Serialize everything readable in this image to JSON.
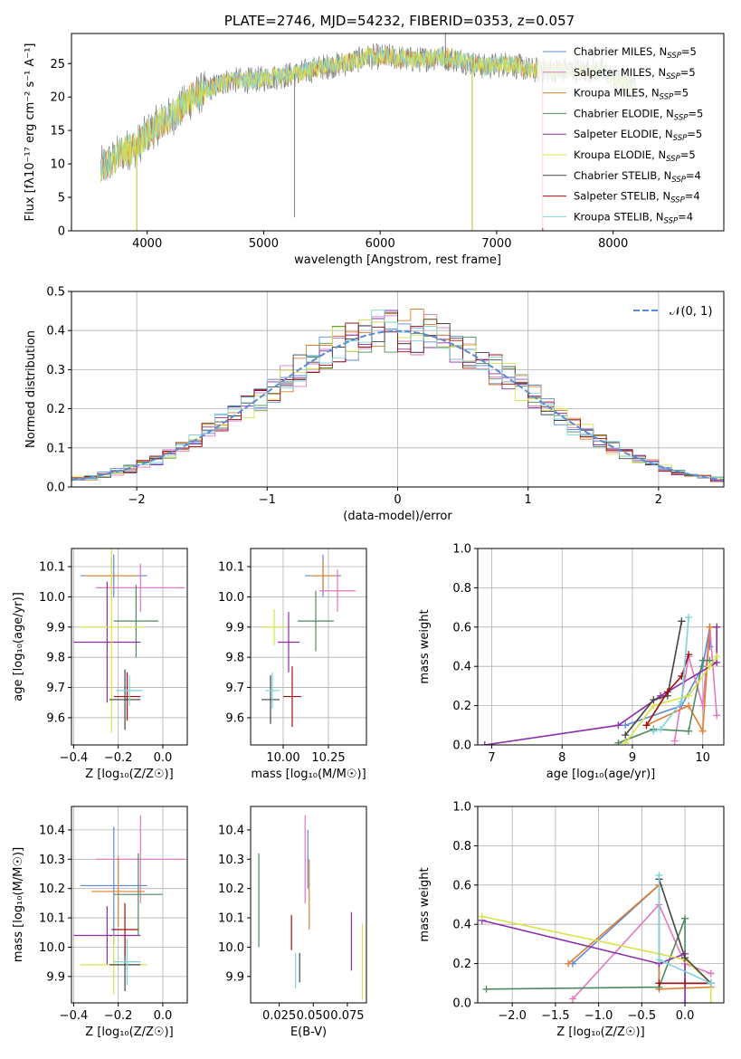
{
  "chart_data": [
    {
      "id": "spectrum",
      "type": "line",
      "title": "PLATE=2746, MJD=54232, FIBERID=0353, z=0.057",
      "xlabel": "wavelength [Angstrom, rest frame]",
      "ylabel": "Flux [fλ10⁻¹⁷ erg cm⁻² s⁻¹ A⁻¹]",
      "xlim": [
        3350,
        8950
      ],
      "ylim": [
        0,
        29.5
      ],
      "xticks": [
        4000,
        5000,
        6000,
        7000,
        8000
      ],
      "yticks": [
        0,
        5,
        10,
        15,
        20,
        25
      ],
      "x_range": [
        3600,
        8200
      ],
      "data_color": "#808080",
      "continuum": {
        "x": [
          3600,
          3700,
          3800,
          3900,
          4000,
          4100,
          4200,
          4300,
          4400,
          4500,
          4700,
          4900,
          5100,
          5300,
          5500,
          5700,
          5900,
          6100,
          6300,
          6500,
          6700,
          6900,
          7100,
          7300,
          7500,
          7700,
          7900,
          8100,
          8200
        ],
        "y": [
          9.5,
          10.5,
          12,
          12.5,
          14.5,
          16,
          17,
          18.5,
          20,
          21,
          22.5,
          22.5,
          23,
          23.5,
          24.5,
          25,
          26,
          26,
          25.5,
          26,
          25.5,
          24.5,
          25,
          24,
          24,
          24,
          24,
          22,
          21
        ]
      },
      "spikes": [
        {
          "x": 3910,
          "y": 0,
          "color": "#bcbd22"
        },
        {
          "x": 5265,
          "y": 2,
          "color": "#808080"
        },
        {
          "x": 6560,
          "y": 29.5,
          "color": "#808080"
        },
        {
          "x": 6790,
          "y": 0,
          "color": "#bcbd22"
        },
        {
          "x": 7395,
          "y": 0,
          "color": "#d62728"
        }
      ],
      "legend_position": "right",
      "legend": [
        {
          "label": "Chabrier MILES, N",
          "sub": "SSP",
          "suffix": "=5",
          "color": "#5b8bd6"
        },
        {
          "label": "Salpeter MILES, N",
          "sub": "SSP",
          "suffix": "=5",
          "color": "#e377c2"
        },
        {
          "label": "Kroupa MILES, N",
          "sub": "SSP",
          "suffix": "=5",
          "color": "#e07f30"
        },
        {
          "label": "Chabrier ELODIE, N",
          "sub": "SSP",
          "suffix": "=5",
          "color": "#4e8a5b"
        },
        {
          "label": "Salpeter ELODIE, N",
          "sub": "SSP",
          "suffix": "=5",
          "color": "#8b2fa8"
        },
        {
          "label": "Kroupa ELODIE, N",
          "sub": "SSP",
          "suffix": "=5",
          "color": "#d8e34a"
        },
        {
          "label": "Chabrier STELIB, N",
          "sub": "SSP",
          "suffix": "=4",
          "color": "#444444"
        },
        {
          "label": "Salpeter STELIB, N",
          "sub": "SSP",
          "suffix": "=4",
          "color": "#a01010"
        },
        {
          "label": "Kroupa STELIB, N",
          "sub": "SSP",
          "suffix": "=4",
          "color": "#7fd3dc"
        }
      ]
    },
    {
      "id": "residuals",
      "type": "line",
      "xlabel": "(data-model)/error",
      "ylabel": "Normed distribution",
      "xlim": [
        -2.5,
        2.5
      ],
      "ylim": [
        0,
        0.5
      ],
      "xticks": [
        -2,
        -1,
        0,
        1,
        2
      ],
      "yticks": [
        0.0,
        0.1,
        0.2,
        0.3,
        0.4,
        0.5
      ],
      "grid": true,
      "legend_position": "top-right",
      "gaussian_label": "𝒩(0, 1)",
      "gaussian_color": "#5b8bd6"
    },
    {
      "id": "age-vs-Z",
      "type": "scatter",
      "xlabel": "Z [log₁₀(Z/Z☉)]",
      "ylabel": "age  [log₁₀(age/yr)]",
      "xlim": [
        -0.41,
        0.11
      ],
      "ylim": [
        9.51,
        10.16
      ],
      "xticks": [
        -0.4,
        -0.2,
        0.0
      ],
      "yticks": [
        9.6,
        9.7,
        9.8,
        9.9,
        10.0,
        10.1
      ],
      "grid": true,
      "points": [
        {
          "x": -0.22,
          "y": 10.07,
          "xerr": 0.15,
          "yerr": 0.07,
          "color": "#5b8bd6"
        },
        {
          "x": -0.1,
          "y": 10.03,
          "xerr": 0.2,
          "yerr": 0.08,
          "color": "#e377c2"
        },
        {
          "x": -0.23,
          "y": 10.07,
          "xerr": 0.12,
          "yerr": 0.06,
          "color": "#e07f30"
        },
        {
          "x": -0.12,
          "y": 9.92,
          "xerr": 0.1,
          "yerr": 0.12,
          "color": "#4e8a5b"
        },
        {
          "x": -0.25,
          "y": 9.85,
          "xerr": 0.15,
          "yerr": 0.2,
          "color": "#8b2fa8"
        },
        {
          "x": -0.23,
          "y": 9.9,
          "xerr": 0.15,
          "yerr": 0.35,
          "color": "#d8e34a"
        },
        {
          "x": -0.17,
          "y": 9.66,
          "xerr": 0.07,
          "yerr": 0.1,
          "color": "#444444"
        },
        {
          "x": -0.16,
          "y": 9.67,
          "xerr": 0.06,
          "yerr": 0.08,
          "color": "#a01010"
        },
        {
          "x": -0.15,
          "y": 9.69,
          "xerr": 0.06,
          "yerr": 0.05,
          "color": "#7fd3dc"
        }
      ]
    },
    {
      "id": "age-vs-mass",
      "type": "scatter",
      "xlabel": "mass [log₁₀(M/M☉)]",
      "ylabel": "",
      "xlim": [
        9.82,
        10.46
      ],
      "ylim": [
        9.51,
        10.16
      ],
      "xticks": [
        10.0,
        10.25
      ],
      "yticks": [
        9.6,
        9.7,
        9.8,
        9.9,
        10.0,
        10.1
      ],
      "grid": true,
      "points": [
        {
          "x": 10.22,
          "y": 10.07,
          "xerr": 0.1,
          "yerr": 0.07,
          "color": "#5b8bd6"
        },
        {
          "x": 10.3,
          "y": 10.02,
          "xerr": 0.1,
          "yerr": 0.07,
          "color": "#e377c2"
        },
        {
          "x": 10.22,
          "y": 10.07,
          "xerr": 0.07,
          "yerr": 0.05,
          "color": "#e07f30"
        },
        {
          "x": 10.18,
          "y": 9.92,
          "xerr": 0.1,
          "yerr": 0.1,
          "color": "#4e8a5b"
        },
        {
          "x": 10.03,
          "y": 9.85,
          "xerr": 0.06,
          "yerr": 0.1,
          "color": "#8b2fa8"
        },
        {
          "x": 9.95,
          "y": 9.9,
          "xerr": 0.06,
          "yerr": 0.06,
          "color": "#d8e34a"
        },
        {
          "x": 9.93,
          "y": 9.66,
          "xerr": 0.05,
          "yerr": 0.08,
          "color": "#444444"
        },
        {
          "x": 10.05,
          "y": 9.67,
          "xerr": 0.05,
          "yerr": 0.1,
          "color": "#a01010"
        },
        {
          "x": 9.94,
          "y": 9.69,
          "xerr": 0.04,
          "yerr": 0.06,
          "color": "#7fd3dc"
        }
      ]
    },
    {
      "id": "weight-vs-age",
      "type": "line",
      "xlabel": "age  [log₁₀(age/yr)]",
      "ylabel": "mass weight",
      "xlim": [
        6.8,
        10.3
      ],
      "ylim": [
        0,
        1.0
      ],
      "xticks": [
        7,
        8,
        9,
        10
      ],
      "yticks": [
        0.0,
        0.2,
        0.4,
        0.6,
        0.8,
        1.0
      ],
      "grid": true,
      "series": [
        {
          "x": [
            8.9,
            9.7,
            10.0,
            10.1,
            10.1
          ],
          "y": [
            0.1,
            0.2,
            0.4,
            0.6,
            0.5
          ],
          "color": "#5b8bd6"
        },
        {
          "x": [
            9.6,
            9.8,
            10.0,
            10.1,
            10.2
          ],
          "y": [
            0.02,
            0.45,
            0.2,
            0.6,
            0.15
          ],
          "color": "#e377c2"
        },
        {
          "x": [
            9.2,
            9.8,
            10.0,
            10.1,
            10.2
          ],
          "y": [
            0.1,
            0.2,
            0.07,
            0.6,
            0.6
          ],
          "color": "#e07f30"
        },
        {
          "x": [
            8.8,
            9.3,
            9.8,
            10.0,
            10.1
          ],
          "y": [
            0.01,
            0.08,
            0.07,
            0.43,
            0.43
          ],
          "color": "#4e8a5b"
        },
        {
          "x": [
            6.9,
            8.8,
            9.4,
            10.2,
            10.2
          ],
          "y": [
            0.0,
            0.1,
            0.25,
            0.42,
            0.6
          ],
          "color": "#8b2fa8"
        },
        {
          "x": [
            8.9,
            9.3,
            9.8,
            10.1,
            10.2
          ],
          "y": [
            0.01,
            0.2,
            0.25,
            0.4,
            0.45
          ],
          "color": "#d8e34a"
        },
        {
          "x": [
            8.9,
            9.3,
            9.5,
            9.7
          ],
          "y": [
            0.05,
            0.23,
            0.25,
            0.63
          ],
          "color": "#444444"
        },
        {
          "x": [
            9.2,
            9.5,
            9.7,
            9.8
          ],
          "y": [
            0.1,
            0.27,
            0.35,
            0.46
          ],
          "color": "#a01010"
        },
        {
          "x": [
            9.3,
            9.4,
            9.7,
            9.8
          ],
          "y": [
            0.07,
            0.08,
            0.22,
            0.65
          ],
          "color": "#7fd3dc"
        }
      ]
    },
    {
      "id": "mass-vs-Z",
      "type": "scatter",
      "xlabel": "Z [log₁₀(Z/Z☉)]",
      "ylabel": "mass [log₁₀(M/M☉)]",
      "xlim": [
        -0.41,
        0.11
      ],
      "ylim": [
        9.81,
        10.48
      ],
      "xticks": [
        -0.4,
        -0.2,
        0.0
      ],
      "yticks": [
        9.9,
        10.0,
        10.1,
        10.2,
        10.3,
        10.4
      ],
      "grid": true,
      "points": [
        {
          "x": -0.22,
          "y": 10.21,
          "xerr": 0.15,
          "yerr": 0.2,
          "color": "#5b8bd6"
        },
        {
          "x": -0.1,
          "y": 10.3,
          "xerr": 0.2,
          "yerr": 0.15,
          "color": "#e377c2"
        },
        {
          "x": -0.2,
          "y": 10.19,
          "xerr": 0.12,
          "yerr": 0.12,
          "color": "#e07f30"
        },
        {
          "x": -0.11,
          "y": 10.18,
          "xerr": 0.11,
          "yerr": 0.14,
          "color": "#4e8a5b"
        },
        {
          "x": -0.25,
          "y": 10.04,
          "xerr": 0.15,
          "yerr": 0.1,
          "color": "#8b2fa8"
        },
        {
          "x": -0.22,
          "y": 9.94,
          "xerr": 0.15,
          "yerr": 0.1,
          "color": "#d8e34a"
        },
        {
          "x": -0.17,
          "y": 9.94,
          "xerr": 0.07,
          "yerr": 0.09,
          "color": "#444444"
        },
        {
          "x": -0.17,
          "y": 10.06,
          "xerr": 0.06,
          "yerr": 0.09,
          "color": "#a01010"
        },
        {
          "x": -0.16,
          "y": 9.95,
          "xerr": 0.06,
          "yerr": 0.08,
          "color": "#7fd3dc"
        }
      ]
    },
    {
      "id": "mass-vs-EBV",
      "type": "scatter",
      "xlabel": "E(B-V)",
      "ylabel": "",
      "xlim": [
        0.004,
        0.089
      ],
      "ylim": [
        9.81,
        10.48
      ],
      "xticks": [
        0.025,
        0.05,
        0.075
      ],
      "yticks": [
        9.9,
        10.0,
        10.1,
        10.2,
        10.3,
        10.4
      ],
      "grid": false,
      "points": [
        {
          "x": 0.046,
          "y": 10.3,
          "yerr": 0.1,
          "color": "#5b8bd6"
        },
        {
          "x": 0.044,
          "y": 10.3,
          "yerr": 0.15,
          "color": "#e377c2"
        },
        {
          "x": 0.047,
          "y": 10.18,
          "yerr": 0.12,
          "color": "#e07f30"
        },
        {
          "x": 0.01,
          "y": 10.16,
          "yerr": 0.16,
          "color": "#4e8a5b"
        },
        {
          "x": 0.078,
          "y": 10.02,
          "yerr": 0.1,
          "color": "#8b2fa8"
        },
        {
          "x": 0.086,
          "y": 9.95,
          "yerr": 0.13,
          "color": "#d8e34a"
        },
        {
          "x": 0.04,
          "y": 9.93,
          "yerr": 0.05,
          "color": "#444444"
        },
        {
          "x": 0.034,
          "y": 10.05,
          "yerr": 0.06,
          "color": "#a01010"
        },
        {
          "x": 0.037,
          "y": 9.92,
          "yerr": 0.06,
          "color": "#7fd3dc"
        }
      ]
    },
    {
      "id": "weight-vs-Z",
      "type": "line",
      "xlabel": "Z [log₁₀(Z/Z☉)]",
      "ylabel": "mass weight",
      "xlim": [
        -2.4,
        0.45
      ],
      "ylim": [
        0,
        1.0
      ],
      "xticks": [
        -2.0,
        -1.5,
        -1.0,
        -0.5,
        0.0
      ],
      "yticks": [
        0.0,
        0.2,
        0.4,
        0.6,
        0.8,
        1.0
      ],
      "grid": true,
      "series": [
        {
          "x": [
            -1.3,
            -0.3,
            -0.3,
            0.3
          ],
          "y": [
            0.2,
            0.6,
            0.1,
            0.1
          ],
          "color": "#5b8bd6"
        },
        {
          "x": [
            -1.3,
            -0.3,
            0.0,
            0.3,
            0.3
          ],
          "y": [
            0.02,
            0.5,
            0.2,
            0.15,
            0.15
          ],
          "color": "#e377c2"
        },
        {
          "x": [
            -1.35,
            -0.3,
            -0.3,
            0.3,
            0.3
          ],
          "y": [
            0.2,
            0.6,
            0.07,
            0.08,
            0.1
          ],
          "color": "#e07f30"
        },
        {
          "x": [
            -2.3,
            -0.3,
            0.0,
            0.0,
            0.3
          ],
          "y": [
            0.07,
            0.08,
            0.43,
            0.1,
            0.1
          ],
          "color": "#4e8a5b"
        },
        {
          "x": [
            -2.35,
            -0.3,
            0.0,
            0.0
          ],
          "y": [
            0.42,
            0.2,
            0.25,
            0.0
          ],
          "color": "#8b2fa8"
        },
        {
          "x": [
            -2.35,
            -0.3,
            0.0,
            0.3,
            0.3
          ],
          "y": [
            0.44,
            0.25,
            0.22,
            0.1,
            0.0
          ],
          "color": "#d8e34a"
        },
        {
          "x": [
            -0.3,
            0.0,
            0.3
          ],
          "y": [
            0.63,
            0.23,
            0.1
          ],
          "color": "#444444"
        },
        {
          "x": [
            -0.3,
            0.0,
            0.3
          ],
          "y": [
            0.1,
            0.1,
            0.1
          ],
          "color": "#a01010"
        },
        {
          "x": [
            -0.3,
            -0.3,
            0.3
          ],
          "y": [
            0.65,
            0.22,
            0.1
          ],
          "color": "#7fd3dc"
        }
      ]
    }
  ]
}
